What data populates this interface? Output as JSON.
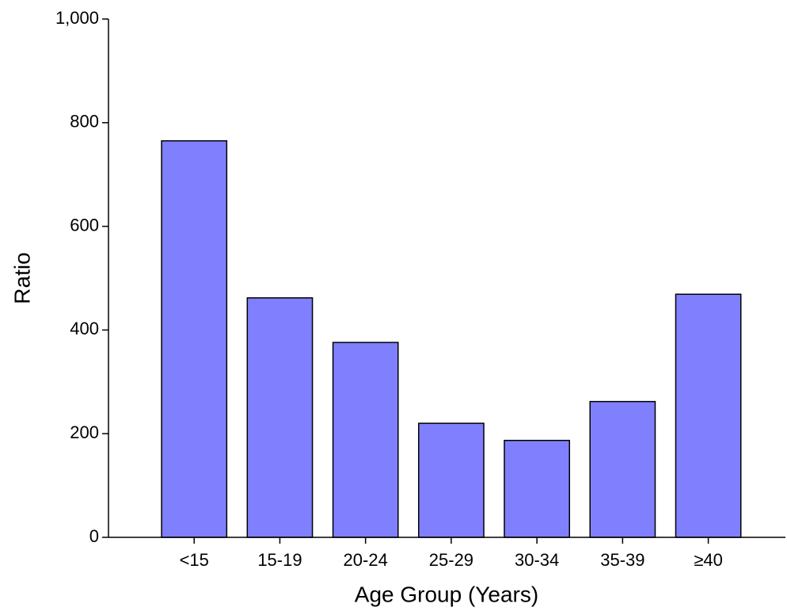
{
  "chart_data": {
    "type": "bar",
    "x_label": "Age Group (Years)",
    "y_label": "Ratio",
    "categories": [
      "<15",
      "15-19",
      "20-24",
      "25-29",
      "30-34",
      "35-39",
      "≥40"
    ],
    "values": [
      765,
      462,
      376,
      220,
      187,
      262,
      469
    ],
    "color": "#8080ff",
    "ylim": [
      0,
      1000
    ],
    "yticks": [
      0,
      200,
      400,
      600,
      800,
      {
        "value": 1000,
        "label": "1,000"
      }
    ]
  }
}
